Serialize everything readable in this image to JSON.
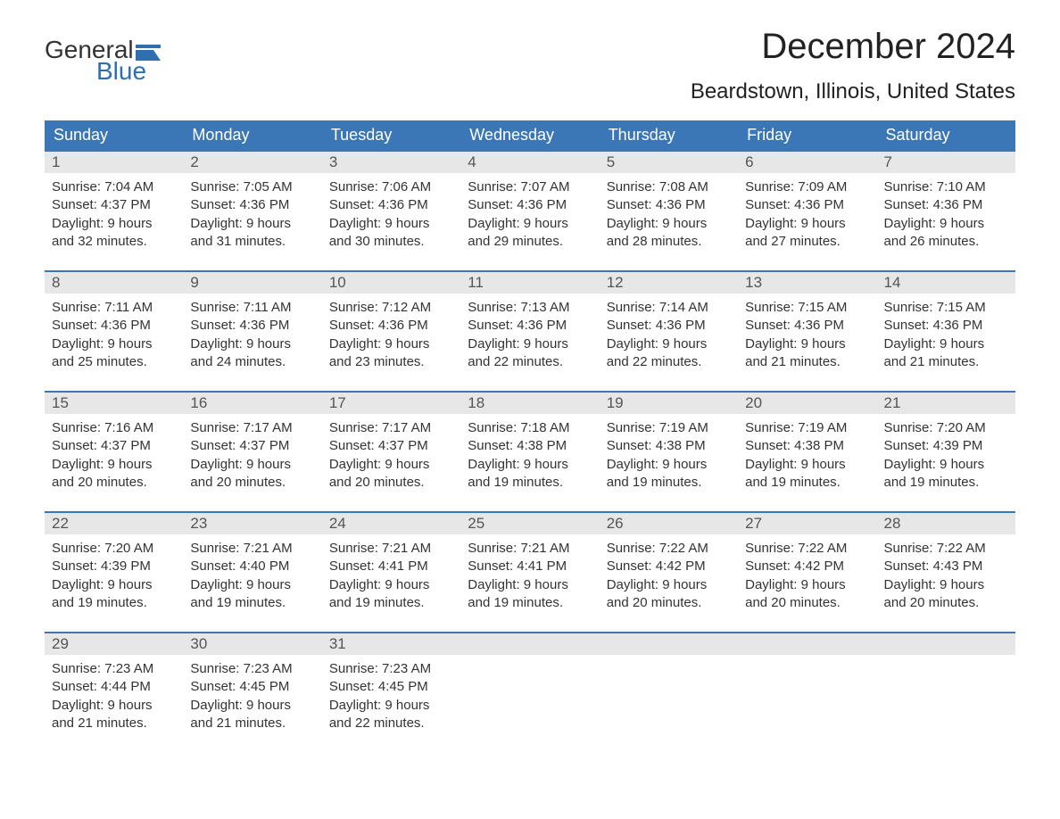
{
  "logo": {
    "text1": "General",
    "text2": "Blue",
    "flag_color": "#2f6fb0"
  },
  "title": "December 2024",
  "location": "Beardstown, Illinois, United States",
  "colors": {
    "header_bg": "#3b76b6",
    "header_text": "#ffffff",
    "date_row_bg": "#e7e7e7",
    "week_border": "#3b76b6",
    "body_text": "#333333",
    "logo_blue": "#2f6fb0"
  },
  "day_names": [
    "Sunday",
    "Monday",
    "Tuesday",
    "Wednesday",
    "Thursday",
    "Friday",
    "Saturday"
  ],
  "weeks": [
    [
      {
        "date": "1",
        "sunrise": "Sunrise: 7:04 AM",
        "sunset": "Sunset: 4:37 PM",
        "day1": "Daylight: 9 hours",
        "day2": "and 32 minutes."
      },
      {
        "date": "2",
        "sunrise": "Sunrise: 7:05 AM",
        "sunset": "Sunset: 4:36 PM",
        "day1": "Daylight: 9 hours",
        "day2": "and 31 minutes."
      },
      {
        "date": "3",
        "sunrise": "Sunrise: 7:06 AM",
        "sunset": "Sunset: 4:36 PM",
        "day1": "Daylight: 9 hours",
        "day2": "and 30 minutes."
      },
      {
        "date": "4",
        "sunrise": "Sunrise: 7:07 AM",
        "sunset": "Sunset: 4:36 PM",
        "day1": "Daylight: 9 hours",
        "day2": "and 29 minutes."
      },
      {
        "date": "5",
        "sunrise": "Sunrise: 7:08 AM",
        "sunset": "Sunset: 4:36 PM",
        "day1": "Daylight: 9 hours",
        "day2": "and 28 minutes."
      },
      {
        "date": "6",
        "sunrise": "Sunrise: 7:09 AM",
        "sunset": "Sunset: 4:36 PM",
        "day1": "Daylight: 9 hours",
        "day2": "and 27 minutes."
      },
      {
        "date": "7",
        "sunrise": "Sunrise: 7:10 AM",
        "sunset": "Sunset: 4:36 PM",
        "day1": "Daylight: 9 hours",
        "day2": "and 26 minutes."
      }
    ],
    [
      {
        "date": "8",
        "sunrise": "Sunrise: 7:11 AM",
        "sunset": "Sunset: 4:36 PM",
        "day1": "Daylight: 9 hours",
        "day2": "and 25 minutes."
      },
      {
        "date": "9",
        "sunrise": "Sunrise: 7:11 AM",
        "sunset": "Sunset: 4:36 PM",
        "day1": "Daylight: 9 hours",
        "day2": "and 24 minutes."
      },
      {
        "date": "10",
        "sunrise": "Sunrise: 7:12 AM",
        "sunset": "Sunset: 4:36 PM",
        "day1": "Daylight: 9 hours",
        "day2": "and 23 minutes."
      },
      {
        "date": "11",
        "sunrise": "Sunrise: 7:13 AM",
        "sunset": "Sunset: 4:36 PM",
        "day1": "Daylight: 9 hours",
        "day2": "and 22 minutes."
      },
      {
        "date": "12",
        "sunrise": "Sunrise: 7:14 AM",
        "sunset": "Sunset: 4:36 PM",
        "day1": "Daylight: 9 hours",
        "day2": "and 22 minutes."
      },
      {
        "date": "13",
        "sunrise": "Sunrise: 7:15 AM",
        "sunset": "Sunset: 4:36 PM",
        "day1": "Daylight: 9 hours",
        "day2": "and 21 minutes."
      },
      {
        "date": "14",
        "sunrise": "Sunrise: 7:15 AM",
        "sunset": "Sunset: 4:36 PM",
        "day1": "Daylight: 9 hours",
        "day2": "and 21 minutes."
      }
    ],
    [
      {
        "date": "15",
        "sunrise": "Sunrise: 7:16 AM",
        "sunset": "Sunset: 4:37 PM",
        "day1": "Daylight: 9 hours",
        "day2": "and 20 minutes."
      },
      {
        "date": "16",
        "sunrise": "Sunrise: 7:17 AM",
        "sunset": "Sunset: 4:37 PM",
        "day1": "Daylight: 9 hours",
        "day2": "and 20 minutes."
      },
      {
        "date": "17",
        "sunrise": "Sunrise: 7:17 AM",
        "sunset": "Sunset: 4:37 PM",
        "day1": "Daylight: 9 hours",
        "day2": "and 20 minutes."
      },
      {
        "date": "18",
        "sunrise": "Sunrise: 7:18 AM",
        "sunset": "Sunset: 4:38 PM",
        "day1": "Daylight: 9 hours",
        "day2": "and 19 minutes."
      },
      {
        "date": "19",
        "sunrise": "Sunrise: 7:19 AM",
        "sunset": "Sunset: 4:38 PM",
        "day1": "Daylight: 9 hours",
        "day2": "and 19 minutes."
      },
      {
        "date": "20",
        "sunrise": "Sunrise: 7:19 AM",
        "sunset": "Sunset: 4:38 PM",
        "day1": "Daylight: 9 hours",
        "day2": "and 19 minutes."
      },
      {
        "date": "21",
        "sunrise": "Sunrise: 7:20 AM",
        "sunset": "Sunset: 4:39 PM",
        "day1": "Daylight: 9 hours",
        "day2": "and 19 minutes."
      }
    ],
    [
      {
        "date": "22",
        "sunrise": "Sunrise: 7:20 AM",
        "sunset": "Sunset: 4:39 PM",
        "day1": "Daylight: 9 hours",
        "day2": "and 19 minutes."
      },
      {
        "date": "23",
        "sunrise": "Sunrise: 7:21 AM",
        "sunset": "Sunset: 4:40 PM",
        "day1": "Daylight: 9 hours",
        "day2": "and 19 minutes."
      },
      {
        "date": "24",
        "sunrise": "Sunrise: 7:21 AM",
        "sunset": "Sunset: 4:41 PM",
        "day1": "Daylight: 9 hours",
        "day2": "and 19 minutes."
      },
      {
        "date": "25",
        "sunrise": "Sunrise: 7:21 AM",
        "sunset": "Sunset: 4:41 PM",
        "day1": "Daylight: 9 hours",
        "day2": "and 19 minutes."
      },
      {
        "date": "26",
        "sunrise": "Sunrise: 7:22 AM",
        "sunset": "Sunset: 4:42 PM",
        "day1": "Daylight: 9 hours",
        "day2": "and 20 minutes."
      },
      {
        "date": "27",
        "sunrise": "Sunrise: 7:22 AM",
        "sunset": "Sunset: 4:42 PM",
        "day1": "Daylight: 9 hours",
        "day2": "and 20 minutes."
      },
      {
        "date": "28",
        "sunrise": "Sunrise: 7:22 AM",
        "sunset": "Sunset: 4:43 PM",
        "day1": "Daylight: 9 hours",
        "day2": "and 20 minutes."
      }
    ],
    [
      {
        "date": "29",
        "sunrise": "Sunrise: 7:23 AM",
        "sunset": "Sunset: 4:44 PM",
        "day1": "Daylight: 9 hours",
        "day2": "and 21 minutes."
      },
      {
        "date": "30",
        "sunrise": "Sunrise: 7:23 AM",
        "sunset": "Sunset: 4:45 PM",
        "day1": "Daylight: 9 hours",
        "day2": "and 21 minutes."
      },
      {
        "date": "31",
        "sunrise": "Sunrise: 7:23 AM",
        "sunset": "Sunset: 4:45 PM",
        "day1": "Daylight: 9 hours",
        "day2": "and 22 minutes."
      },
      null,
      null,
      null,
      null
    ]
  ]
}
